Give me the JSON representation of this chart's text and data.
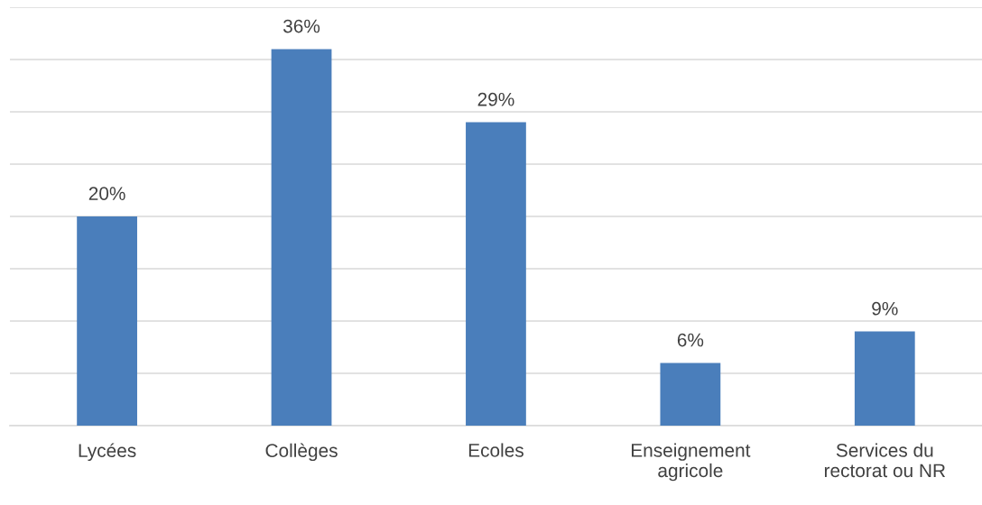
{
  "chart_data": {
    "type": "bar",
    "categories": [
      "Lycées",
      "Collèges",
      "Ecoles",
      "Enseignement agricole",
      "Services du rectorat ou NR"
    ],
    "values": [
      20,
      36,
      29,
      6,
      9
    ],
    "value_labels": [
      "20%",
      "36%",
      "29%",
      "6%",
      "9%"
    ],
    "color": "#4a7ebb",
    "ylim": [
      0,
      40
    ],
    "yticks": [
      {
        "value": 0,
        "label": null
      },
      {
        "value": 5,
        "label": null
      },
      {
        "value": 10,
        "label": null
      },
      {
        "value": 15,
        "label": null
      },
      {
        "value": 20,
        "label": null
      },
      {
        "value": 25,
        "label": null
      },
      {
        "value": 30,
        "label": null
      },
      {
        "value": 35,
        "label": null
      },
      {
        "value": 40,
        "label": null
      }
    ],
    "grid": "y",
    "tick_labels": "x"
  }
}
